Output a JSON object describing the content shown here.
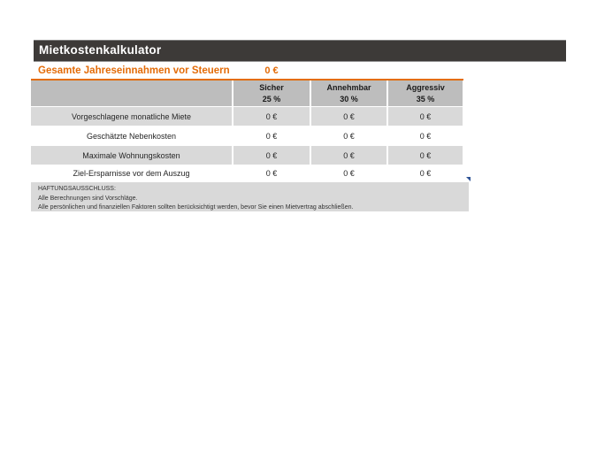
{
  "app": {
    "title": "Mietkostenkalkulator"
  },
  "summary": {
    "label": "Gesamte Jahreseinnahmen vor Steuern",
    "value": "0 €"
  },
  "table": {
    "columns": [
      {
        "name": "Sicher",
        "percent": "25 %"
      },
      {
        "name": "Annehmbar",
        "percent": "30 %"
      },
      {
        "name": "Aggressiv",
        "percent": "35 %"
      }
    ],
    "rows": [
      {
        "label": "Vorgeschlagene monatliche Miete",
        "values": [
          "0 €",
          "0 €",
          "0 €"
        ]
      },
      {
        "label": "Geschätzte Nebenkosten",
        "values": [
          "0 €",
          "0 €",
          "0 €"
        ]
      },
      {
        "label": "Maximale Wohnungskosten",
        "values": [
          "0 €",
          "0 €",
          "0 €"
        ]
      },
      {
        "label": "Ziel-Ersparnisse vor dem Auszug",
        "values": [
          "0 €",
          "0 €",
          "0 €"
        ]
      }
    ]
  },
  "disclaimer": {
    "title": "HAFTUNGSAUSSCHLUSS:",
    "line1": "Alle Berechnungen sind Vorschläge.",
    "line2": "Alle persönlichen und finanziellen Faktoren sollten berücksichtigt werden, bevor Sie einen Mietvertrag abschließen."
  },
  "colors": {
    "accent_orange": "#e36c09",
    "title_bar_bg": "#3d3a38",
    "header_cell_bg": "#bdbdbd",
    "row_stripe_bg": "#d9d9d9",
    "marker_blue": "#2f5496"
  }
}
